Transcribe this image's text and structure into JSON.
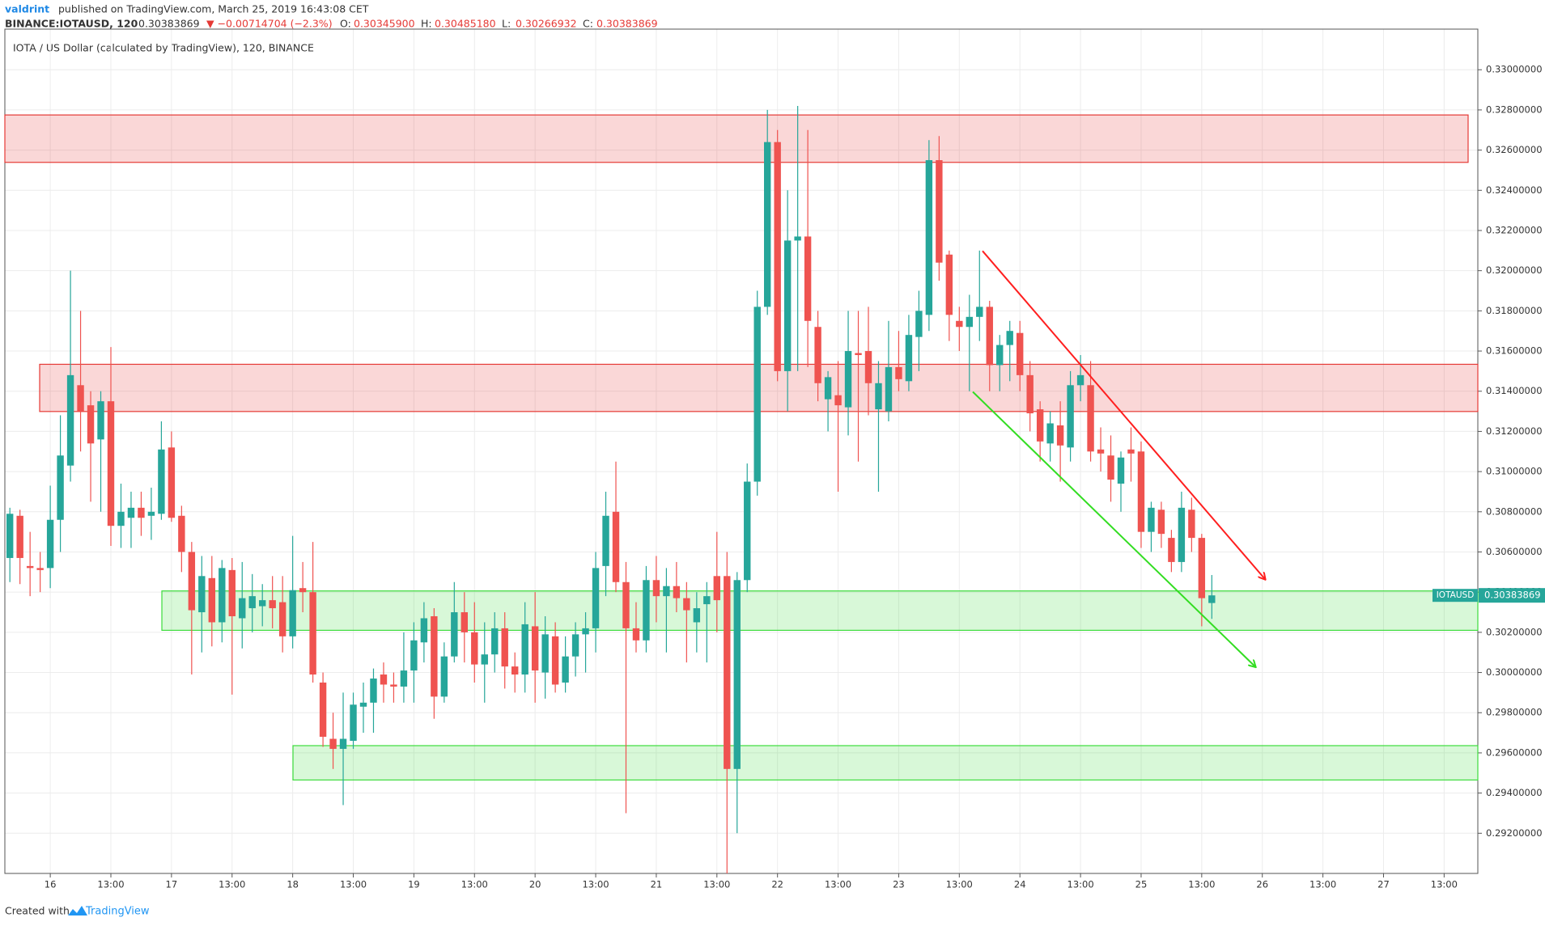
{
  "header": {
    "author": "valdrint",
    "published": "published on TradingView.com, March 25, 2019 16:43:08 CET",
    "symbol": "BINANCE:IOTAUSD, 120",
    "last": "0.30383869",
    "change": "▼ −0.00714704 (−2.3%)",
    "ohlc": [
      {
        "label": "O:",
        "value": "0.30345900"
      },
      {
        "label": "H:",
        "value": "0.30485180"
      },
      {
        "label": "L:",
        "value": "0.30266932"
      },
      {
        "label": "C:",
        "value": "0.30383869"
      }
    ]
  },
  "footer": {
    "created": "Created with",
    "brand": "TradingView"
  },
  "chart_data": {
    "type": "candlestick",
    "title": "IOTA / US Dollar (calculated by TradingView), 120, BINANCE",
    "up_color": "#26a69a",
    "down_color": "#ef5350",
    "grid": true,
    "ylim": [
      0.29,
      0.3317
    ],
    "yticks": [
      {
        "value": 0.292,
        "label": "0.29200000"
      },
      {
        "value": 0.294,
        "label": "0.29400000"
      },
      {
        "value": 0.296,
        "label": "0.29600000"
      },
      {
        "value": 0.298,
        "label": "0.29800000"
      },
      {
        "value": 0.3,
        "label": "0.30000000"
      },
      {
        "value": 0.302,
        "label": "0.30200000"
      },
      {
        "value": 0.304,
        "label": "0.30400000"
      },
      {
        "value": 0.306,
        "label": "0.30600000"
      },
      {
        "value": 0.308,
        "label": "0.30800000"
      },
      {
        "value": 0.31,
        "label": "0.31000000"
      },
      {
        "value": 0.312,
        "label": "0.31200000"
      },
      {
        "value": 0.314,
        "label": "0.31400000"
      },
      {
        "value": 0.316,
        "label": "0.31600000"
      },
      {
        "value": 0.318,
        "label": "0.31800000"
      },
      {
        "value": 0.32,
        "label": "0.32000000"
      },
      {
        "value": 0.322,
        "label": "0.32200000"
      },
      {
        "value": 0.324,
        "label": "0.32400000"
      },
      {
        "value": 0.326,
        "label": "0.32600000"
      },
      {
        "value": 0.328,
        "label": "0.32800000"
      },
      {
        "value": 0.33,
        "label": "0.33000000"
      }
    ],
    "xticks": [
      "16",
      "13:00",
      "17",
      "13:00",
      "18",
      "13:00",
      "19",
      "13:00",
      "20",
      "13:00",
      "21",
      "13:00",
      "22",
      "13:00",
      "23",
      "13:00",
      "24",
      "13:00",
      "25",
      "13:00",
      "26",
      "13:00",
      "27",
      "13:00"
    ],
    "series": [
      {
        "name": "IOTAUSD",
        "open": [
          0.3057,
          0.3078,
          0.3053,
          0.3052,
          0.3052,
          0.3076,
          0.3103,
          0.3143,
          0.3133,
          0.3116,
          0.3135,
          0.3073,
          0.3077,
          0.3082,
          0.3078,
          0.3079,
          0.3112,
          0.3078,
          0.306,
          0.303,
          0.3047,
          0.3025,
          0.3051,
          0.3027,
          0.3032,
          0.3033,
          0.3036,
          0.3035,
          0.3018,
          0.3042,
          0.304,
          0.2995,
          0.2967,
          0.2962,
          0.2966,
          0.2983,
          0.2985,
          0.2999,
          0.2994,
          0.2993,
          0.3001,
          0.3015,
          0.3028,
          0.2988,
          0.3008,
          0.303,
          0.302,
          0.3004,
          0.3009,
          0.3022,
          0.3003,
          0.2999,
          0.3023,
          0.3,
          0.3018,
          0.2995,
          0.3008,
          0.3019,
          0.3022,
          0.3053,
          0.308,
          0.3045,
          0.3022,
          0.3016,
          0.3046,
          0.3038,
          0.3043,
          0.3037,
          0.3025,
          0.3034,
          0.3048,
          0.3048,
          0.2952,
          0.3046,
          0.3095,
          0.3182,
          0.3264,
          0.315,
          0.3215,
          0.3217,
          0.3172,
          0.3136,
          0.3138,
          0.3132,
          0.3159,
          0.316,
          0.3131,
          0.313,
          0.3152,
          0.3145,
          0.3167,
          0.3178,
          0.3255,
          0.3208,
          0.3175,
          0.3172,
          0.3177,
          0.3182,
          0.3153,
          0.3163,
          0.3169,
          0.3148,
          0.3131,
          0.3114,
          0.3123,
          0.3112,
          0.3143,
          0.3143,
          0.3111,
          0.3108,
          0.3094,
          0.3111,
          0.311,
          0.307,
          0.3081,
          0.3067,
          0.3055,
          0.3081,
          0.3067,
          0.303459
        ],
        "high": [
          0.3082,
          0.3081,
          0.307,
          0.306,
          0.3093,
          0.3128,
          0.32,
          0.318,
          0.314,
          0.314,
          0.3162,
          0.3094,
          0.309,
          0.309,
          0.3092,
          0.3125,
          0.312,
          0.3083,
          0.3065,
          0.3058,
          0.3058,
          0.3056,
          0.3057,
          0.3055,
          0.3049,
          0.3044,
          0.3048,
          0.3048,
          0.3068,
          0.3055,
          0.3065,
          0.3,
          0.298,
          0.299,
          0.299,
          0.2995,
          0.3002,
          0.3005,
          0.3,
          0.302,
          0.3025,
          0.3035,
          0.3032,
          0.3015,
          0.3045,
          0.304,
          0.3035,
          0.3025,
          0.303,
          0.303,
          0.301,
          0.3035,
          0.304,
          0.3028,
          0.3025,
          0.3018,
          0.3025,
          0.303,
          0.306,
          0.309,
          0.3105,
          0.3055,
          0.3035,
          0.3053,
          0.3058,
          0.3052,
          0.3055,
          0.3045,
          0.304,
          0.3045,
          0.307,
          0.306,
          0.305,
          0.3104,
          0.319,
          0.328,
          0.327,
          0.324,
          0.3282,
          0.327,
          0.318,
          0.315,
          0.3155,
          0.318,
          0.318,
          0.3182,
          0.3155,
          0.3175,
          0.317,
          0.3178,
          0.319,
          0.3265,
          0.3267,
          0.321,
          0.3182,
          0.3188,
          0.321,
          0.3185,
          0.3168,
          0.3175,
          0.3175,
          0.3155,
          0.3135,
          0.313,
          0.3135,
          0.315,
          0.3158,
          0.3155,
          0.3122,
          0.3118,
          0.311,
          0.3122,
          0.3115,
          0.3085,
          0.3085,
          0.3071,
          0.309,
          0.3087,
          0.3069,
          0.3048518
        ],
        "low": [
          0.3045,
          0.3044,
          0.3038,
          0.304,
          0.3042,
          0.306,
          0.3095,
          0.311,
          0.3085,
          0.308,
          0.3063,
          0.3062,
          0.3062,
          0.3068,
          0.3066,
          0.3076,
          0.3075,
          0.305,
          0.2999,
          0.301,
          0.3013,
          0.3015,
          0.2989,
          0.3012,
          0.302,
          0.3023,
          0.3022,
          0.301,
          0.3012,
          0.303,
          0.2995,
          0.2963,
          0.2952,
          0.2934,
          0.2962,
          0.297,
          0.297,
          0.2985,
          0.2985,
          0.2985,
          0.2985,
          0.3005,
          0.2977,
          0.2985,
          0.3005,
          0.3005,
          0.2995,
          0.2985,
          0.3,
          0.2992,
          0.299,
          0.299,
          0.2985,
          0.2987,
          0.299,
          0.299,
          0.2998,
          0.3,
          0.301,
          0.3038,
          0.304,
          0.293,
          0.301,
          0.301,
          0.3025,
          0.301,
          0.303,
          0.3005,
          0.301,
          0.3005,
          0.302,
          0.29,
          0.292,
          0.304,
          0.3088,
          0.3178,
          0.3145,
          0.313,
          0.315,
          0.3152,
          0.3135,
          0.312,
          0.309,
          0.3118,
          0.3105,
          0.3128,
          0.309,
          0.3125,
          0.314,
          0.314,
          0.315,
          0.317,
          0.3195,
          0.3165,
          0.316,
          0.314,
          0.3165,
          0.314,
          0.314,
          0.3145,
          0.314,
          0.312,
          0.3105,
          0.3105,
          0.3095,
          0.3105,
          0.3135,
          0.3105,
          0.31,
          0.3085,
          0.308,
          0.3095,
          0.3062,
          0.306,
          0.3062,
          0.305,
          0.305,
          0.306,
          0.3023,
          0.30266932
        ],
        "close": [
          0.3079,
          0.3057,
          0.3052,
          0.3051,
          0.3076,
          0.3108,
          0.3148,
          0.313,
          0.3114,
          0.3135,
          0.3073,
          0.308,
          0.3082,
          0.3077,
          0.308,
          0.3111,
          0.3077,
          0.306,
          0.3031,
          0.3048,
          0.3025,
          0.3052,
          0.3028,
          0.3037,
          0.3038,
          0.3036,
          0.3032,
          0.3018,
          0.3041,
          0.304,
          0.2999,
          0.2968,
          0.2962,
          0.2967,
          0.2984,
          0.2985,
          0.2997,
          0.2994,
          0.2993,
          0.3001,
          0.3016,
          0.3027,
          0.2988,
          0.3008,
          0.303,
          0.302,
          0.3004,
          0.3009,
          0.3022,
          0.3003,
          0.2999,
          0.3024,
          0.3001,
          0.3019,
          0.2994,
          0.3008,
          0.3019,
          0.3022,
          0.3052,
          0.3078,
          0.3045,
          0.3022,
          0.3016,
          0.3046,
          0.3038,
          0.3043,
          0.3037,
          0.3031,
          0.3032,
          0.3038,
          0.3036,
          0.2952,
          0.3046,
          0.3095,
          0.3182,
          0.3264,
          0.315,
          0.3215,
          0.3217,
          0.3175,
          0.3144,
          0.3147,
          0.3133,
          0.316,
          0.3158,
          0.3144,
          0.3144,
          0.3152,
          0.3146,
          0.3168,
          0.318,
          0.3255,
          0.3204,
          0.3178,
          0.3172,
          0.3177,
          0.3182,
          0.3153,
          0.3163,
          0.317,
          0.3148,
          0.3129,
          0.3115,
          0.3124,
          0.3113,
          0.3143,
          0.3148,
          0.311,
          0.3109,
          0.3096,
          0.3107,
          0.3109,
          0.307,
          0.3082,
          0.3069,
          0.3055,
          0.3082,
          0.3067,
          0.3037,
          0.30383869
        ]
      }
    ],
    "last_price": 0.30383869,
    "zones": [
      {
        "color": "#e53935",
        "ylim": [
          0.32539,
          0.32775
        ]
      },
      {
        "color": "#e53935",
        "ylim": [
          0.31299,
          0.31534
        ]
      },
      {
        "color": "#3ddc3d",
        "ylim": [
          0.3021,
          0.30406
        ]
      },
      {
        "color": "#3ddc3d",
        "ylim": [
          0.29465,
          0.29636
        ]
      }
    ],
    "trend_lines": [
      {
        "color": "#ff1f1f",
        "y": [
          0.32098,
          0.30465
        ]
      },
      {
        "color": "#33dd22",
        "y": [
          0.31397,
          0.30029
        ]
      }
    ]
  }
}
